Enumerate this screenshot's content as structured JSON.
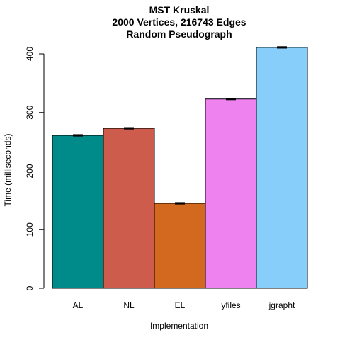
{
  "chart_data": {
    "type": "bar",
    "title_lines": [
      "MST Kruskal",
      "2000 Vertices, 216743 Edges",
      "Random Pseudograph"
    ],
    "xlabel": "Implementation",
    "ylabel": "Time (milliseconds)",
    "categories": [
      "AL",
      "NL",
      "EL",
      "yfiles",
      "jgrapht"
    ],
    "values": [
      261,
      273,
      145,
      323,
      411
    ],
    "errors": [
      1,
      1,
      1,
      1,
      1
    ],
    "colors": [
      "#008B8B",
      "#CD5C4D",
      "#D2691E",
      "#EE82EE",
      "#87CEFA"
    ],
    "ylim": [
      0,
      420
    ],
    "yticks": [
      0,
      100,
      200,
      300,
      400
    ],
    "grid": false,
    "legend": "none"
  }
}
